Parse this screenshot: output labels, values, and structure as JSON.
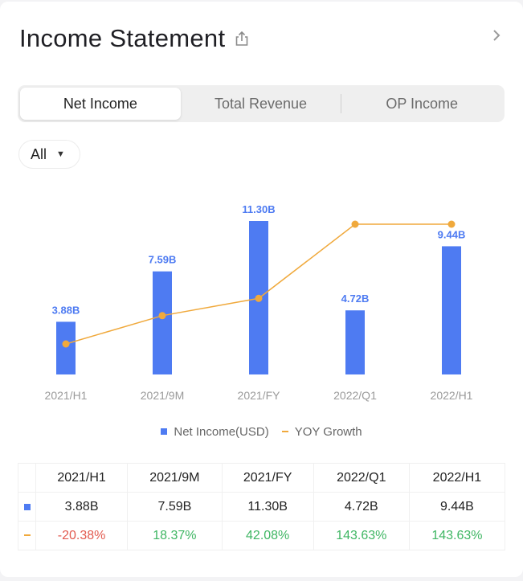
{
  "header": {
    "title": "Income Statement"
  },
  "tabs": [
    {
      "label": "Net Income",
      "active": true
    },
    {
      "label": "Total Revenue",
      "active": false
    },
    {
      "label": "OP Income",
      "active": false
    }
  ],
  "filter": {
    "selected": "All"
  },
  "colors": {
    "bar": "#4e7bf2",
    "line": "#f0a93c",
    "negative": "#e25a4f",
    "positive": "#3fb663"
  },
  "chart_data": {
    "type": "bar",
    "categories": [
      "2021/H1",
      "2021/9M",
      "2021/FY",
      "2022/Q1",
      "2022/H1"
    ],
    "series": [
      {
        "name": "Net Income(USD)",
        "type": "bar",
        "values": [
          3.88,
          7.59,
          11.3,
          4.72,
          9.44
        ],
        "labels": [
          "3.88B",
          "7.59B",
          "11.30B",
          "4.72B",
          "9.44B"
        ]
      },
      {
        "name": "YOY Growth",
        "type": "line",
        "values": [
          -20.38,
          18.37,
          42.08,
          143.63,
          143.63
        ]
      }
    ],
    "title": "",
    "xlabel": "",
    "ylabel": "",
    "legend_position": "bottom",
    "grid": false
  },
  "legend": {
    "bar_label": "Net Income(USD)",
    "line_label": "YOY Growth"
  },
  "table": {
    "headers": [
      "2021/H1",
      "2021/9M",
      "2021/FY",
      "2022/Q1",
      "2022/H1"
    ],
    "net_income": [
      "3.88B",
      "7.59B",
      "11.30B",
      "4.72B",
      "9.44B"
    ],
    "yoy_growth": [
      "-20.38%",
      "18.37%",
      "42.08%",
      "143.63%",
      "143.63%"
    ]
  }
}
